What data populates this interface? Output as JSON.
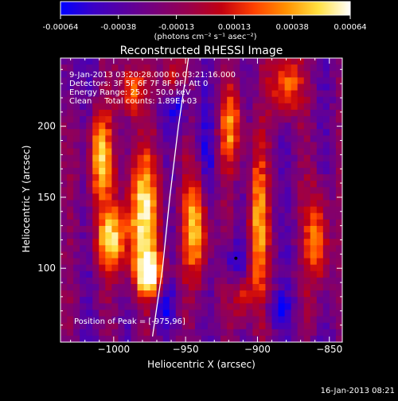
{
  "colorbar": {
    "min": -0.00064,
    "max": 0.00064,
    "tick_labels": [
      "-0.00064",
      "-0.00038",
      "-0.00013",
      "0.00013",
      "0.00038",
      "0.00064"
    ],
    "unit_label": "(photons cm⁻² s⁻¹ asec⁻²)",
    "colors": [
      "#0000ff",
      "#3a00c8",
      "#5a00a0",
      "#7a0078",
      "#9a004c",
      "#c20010",
      "#ff4000",
      "#ff9000",
      "#ffe040",
      "#ffffff"
    ]
  },
  "chart_data": {
    "type": "heatmap",
    "title": "Reconstructed RHESSI Image",
    "xlabel": "Heliocentric X (arcsec)",
    "ylabel": "Heliocentric Y (arcsec)",
    "xlim": [
      -1037,
      -841
    ],
    "ylim": [
      48,
      248
    ],
    "x_ticks": [
      -1000,
      -950,
      -900,
      -850
    ],
    "y_ticks": [
      100,
      150,
      200
    ],
    "x_tick_labels": [
      "−1000",
      "−950",
      "−900",
      "−850"
    ],
    "y_tick_labels": [
      "100",
      "150",
      "200"
    ],
    "peak": [
      -975,
      96
    ],
    "limb_curve": [
      [
        -973,
        52
      ],
      [
        -966,
        100
      ],
      [
        -961,
        150
      ],
      [
        -955,
        200
      ],
      [
        -948,
        248
      ]
    ],
    "annotations": [
      "9-Jan-2013 03:20:28.000 to 03:21:16.000",
      "Detectors: 3F 5F 6F 7F 8F 9F, Att 0",
      "Energy Range: 25.0 - 50.0 keV",
      "Clean     Total counts: 1.89E+03"
    ],
    "peak_label": "Position of Peak = [-975,96]",
    "bright_sources": [
      {
        "x": -1010,
        "y": 178,
        "amp": 0.9,
        "sx": 6,
        "sy": 22
      },
      {
        "x": -1002,
        "y": 120,
        "amp": 0.85,
        "sx": 8,
        "sy": 16
      },
      {
        "x": -980,
        "y": 140,
        "amp": 0.95,
        "sx": 9,
        "sy": 30
      },
      {
        "x": -975,
        "y": 96,
        "amp": 1.0,
        "sx": 7,
        "sy": 12
      },
      {
        "x": -988,
        "y": 225,
        "amp": 0.75,
        "sx": 6,
        "sy": 14
      },
      {
        "x": -942,
        "y": 130,
        "amp": 0.9,
        "sx": 6,
        "sy": 28
      },
      {
        "x": -918,
        "y": 200,
        "amp": 0.7,
        "sx": 6,
        "sy": 20
      },
      {
        "x": -900,
        "y": 130,
        "amp": 0.8,
        "sx": 5,
        "sy": 40
      },
      {
        "x": -880,
        "y": 230,
        "amp": 0.8,
        "sx": 7,
        "sy": 16
      },
      {
        "x": -858,
        "y": 120,
        "amp": 0.75,
        "sx": 6,
        "sy": 26
      },
      {
        "x": -960,
        "y": 235,
        "amp": 0.6,
        "sx": 6,
        "sy": 10
      },
      {
        "x": -910,
        "y": 80,
        "amp": 0.55,
        "sx": 5,
        "sy": 14
      }
    ],
    "dark_sources": [
      {
        "x": -955,
        "y": 215,
        "amp": 0.9,
        "sx": 5,
        "sy": 14
      },
      {
        "x": -915,
        "y": 105,
        "amp": 0.9,
        "sx": 6,
        "sy": 10
      },
      {
        "x": -935,
        "y": 175,
        "amp": 0.6,
        "sx": 5,
        "sy": 25
      },
      {
        "x": -885,
        "y": 70,
        "amp": 0.8,
        "sx": 7,
        "sy": 8
      },
      {
        "x": -965,
        "y": 75,
        "amp": 0.7,
        "sx": 6,
        "sy": 10
      },
      {
        "x": -1030,
        "y": 230,
        "amp": 0.5,
        "sx": 5,
        "sy": 12
      }
    ]
  },
  "footer": {
    "timestamp": "16-Jan-2013 08:21"
  }
}
